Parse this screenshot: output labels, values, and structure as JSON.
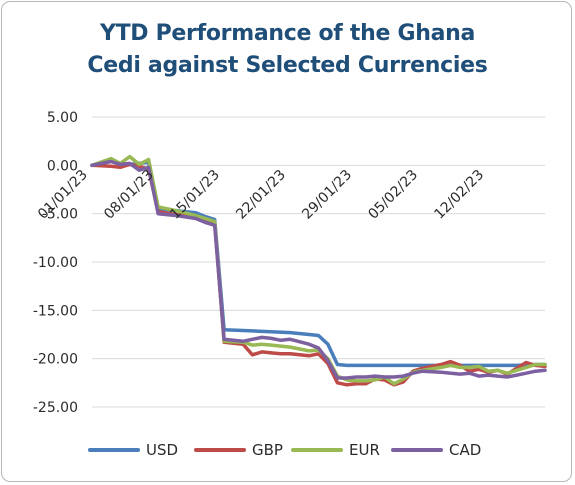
{
  "chart_data": {
    "type": "line",
    "title_line1": "YTD Performance of the Ghana",
    "title_line2": "Cedi against Selected Currencies",
    "xlabel": "",
    "ylabel": "",
    "ylim": [
      -25,
      5
    ],
    "yticks": [
      "5.00",
      "0.00",
      "-5.00",
      "-10.00",
      "-15.00",
      "-20.00",
      "-25.00"
    ],
    "ytick_values": [
      5,
      0,
      -5,
      -10,
      -15,
      -20,
      -25
    ],
    "xticks": [
      "01/01/23",
      "08/01/23",
      "15/01/23",
      "22/01/23",
      "29/01/23",
      "05/02/23",
      "12/02/23"
    ],
    "xtick_days": [
      1,
      8,
      15,
      22,
      29,
      36,
      43
    ],
    "xlim_days": [
      1,
      49
    ],
    "grid": true,
    "legend_position": "bottom",
    "series": [
      {
        "name": "USD",
        "color": "#4a7ebb",
        "x": [
          1,
          3,
          4,
          5,
          6,
          7,
          8,
          10,
          12,
          13,
          14,
          15,
          22,
          24,
          25,
          26,
          27,
          28,
          29,
          30,
          32,
          34,
          36,
          38,
          40,
          42,
          44,
          46,
          48,
          49
        ],
        "y": [
          0,
          0.4,
          0.2,
          0.1,
          0.2,
          0.3,
          -4.5,
          -4.7,
          -4.9,
          -5.3,
          -5.6,
          -17,
          -17.3,
          -17.5,
          -17.6,
          -18.5,
          -20.6,
          -20.7,
          -20.7,
          -20.7,
          -20.7,
          -20.7,
          -20.7,
          -20.7,
          -20.7,
          -20.7,
          -20.7,
          -20.7,
          -20.6,
          -20.6
        ]
      },
      {
        "name": "GBP",
        "color": "#be4b48",
        "x": [
          1,
          3,
          4,
          5,
          6,
          7,
          8,
          10,
          12,
          13,
          14,
          15,
          17,
          18,
          19,
          20,
          21,
          22,
          24,
          25,
          26,
          27,
          28,
          29,
          30,
          31,
          32,
          33,
          34,
          35,
          36,
          38,
          39,
          40,
          41,
          42,
          43,
          44,
          45,
          46,
          47,
          48,
          49
        ],
        "y": [
          0,
          -0.1,
          -0.2,
          0.1,
          -0.1,
          -0.4,
          -4.8,
          -5.1,
          -5.4,
          -5.7,
          -6,
          -18.3,
          -18.5,
          -19.6,
          -19.3,
          -19.4,
          -19.5,
          -19.5,
          -19.7,
          -19.5,
          -20.5,
          -22.5,
          -22.7,
          -22.6,
          -22.6,
          -22.1,
          -22.2,
          -22.7,
          -22.4,
          -21.3,
          -21,
          -20.6,
          -20.3,
          -20.7,
          -21.3,
          -21.1,
          -21.4,
          -21.2,
          -21.6,
          -21.0,
          -20.4,
          -20.7,
          -20.8
        ]
      },
      {
        "name": "EUR",
        "color": "#98b954",
        "x": [
          1,
          3,
          4,
          5,
          6,
          7,
          8,
          10,
          12,
          13,
          14,
          15,
          17,
          18,
          19,
          20,
          21,
          22,
          24,
          25,
          26,
          27,
          28,
          29,
          30,
          31,
          32,
          33,
          34,
          35,
          36,
          38,
          39,
          40,
          41,
          42,
          43,
          44,
          45,
          46,
          47,
          48,
          49
        ],
        "y": [
          0,
          0.7,
          0.2,
          0.9,
          0.1,
          0.6,
          -4.3,
          -4.7,
          -5.2,
          -5.5,
          -5.8,
          -18.2,
          -18.3,
          -18.6,
          -18.5,
          -18.6,
          -18.7,
          -18.8,
          -19.2,
          -19.1,
          -20.0,
          -21.8,
          -22.2,
          -22.3,
          -22.3,
          -22.2,
          -21.9,
          -22.6,
          -22.1,
          -21.4,
          -21.2,
          -20.9,
          -20.7,
          -20.9,
          -20.9,
          -20.8,
          -21.3,
          -21.2,
          -21.5,
          -21.2,
          -20.9,
          -20.6,
          -20.6
        ]
      },
      {
        "name": "CAD",
        "color": "#7d60a0",
        "x": [
          1,
          3,
          4,
          5,
          6,
          7,
          8,
          10,
          12,
          13,
          14,
          15,
          17,
          18,
          19,
          20,
          21,
          22,
          24,
          25,
          26,
          27,
          28,
          29,
          30,
          31,
          32,
          33,
          34,
          35,
          36,
          38,
          40,
          41,
          42,
          43,
          44,
          45,
          46,
          47,
          48,
          49
        ],
        "y": [
          0,
          0.4,
          0.1,
          0.2,
          -0.5,
          -0.2,
          -5.0,
          -5.2,
          -5.5,
          -5.9,
          -6.2,
          -18.0,
          -18.2,
          -18.0,
          -17.8,
          -17.9,
          -18.1,
          -18.0,
          -18.5,
          -18.9,
          -20.2,
          -22.0,
          -22.0,
          -21.9,
          -21.9,
          -21.8,
          -21.9,
          -21.9,
          -21.8,
          -21.5,
          -21.3,
          -21.4,
          -21.6,
          -21.5,
          -21.8,
          -21.7,
          -21.8,
          -21.9,
          -21.7,
          -21.5,
          -21.3,
          -21.2
        ]
      }
    ]
  }
}
